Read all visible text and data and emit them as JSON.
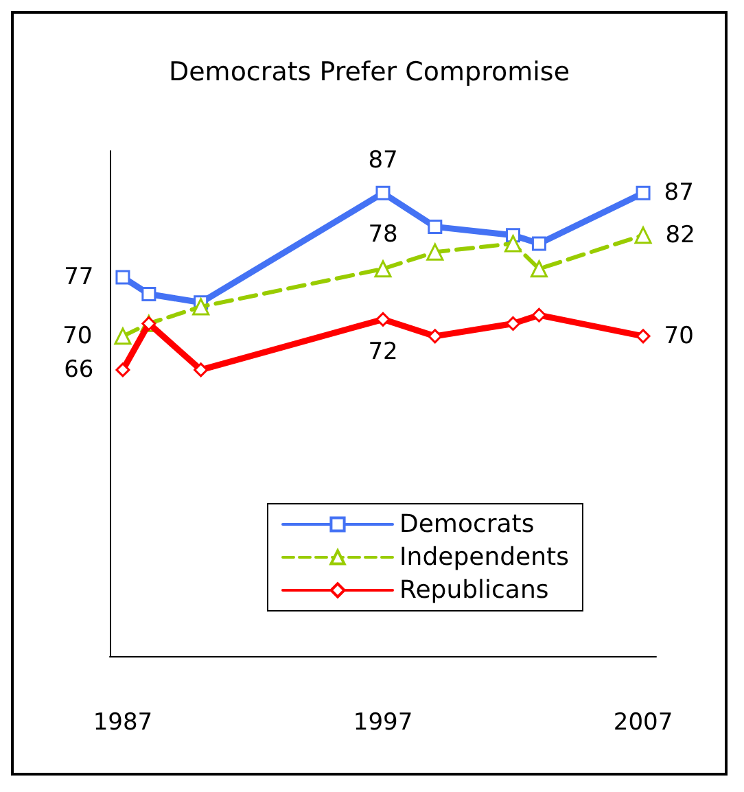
{
  "chart_data": {
    "type": "line",
    "title": "Democrats Prefer Compromise",
    "x": [
      1987,
      1988,
      1990,
      1997,
      1999,
      2002,
      2003,
      2007
    ],
    "xlim": [
      1986.5,
      2007.5
    ],
    "xticks": [
      1987,
      1997,
      2007
    ],
    "ylim": [
      32,
      92
    ],
    "tick_labels": "x",
    "grid": false,
    "legend": "bottom",
    "series": [
      {
        "name": "Democrats",
        "color": "#4472f4",
        "marker": "square",
        "line_style": "solid",
        "values": [
          77,
          75,
          74,
          87,
          83,
          82,
          81,
          87
        ],
        "value_labels": [
          "77",
          null,
          null,
          "87",
          null,
          null,
          null,
          "87"
        ]
      },
      {
        "name": "Independents",
        "color": "#99cc00",
        "marker": "triangle",
        "line_style": "dashed",
        "values": [
          70,
          71.5,
          73.5,
          78,
          80,
          81,
          78,
          82
        ],
        "value_labels": [
          "70",
          null,
          null,
          "78",
          null,
          null,
          null,
          "82"
        ]
      },
      {
        "name": "Republicans",
        "color": "#ff0000",
        "marker": "diamond",
        "line_style": "solid",
        "values": [
          66,
          71.5,
          66,
          72,
          70,
          71.5,
          72.5,
          70
        ],
        "value_labels": [
          "66",
          null,
          null,
          "72",
          null,
          null,
          null,
          "70"
        ]
      }
    ]
  }
}
